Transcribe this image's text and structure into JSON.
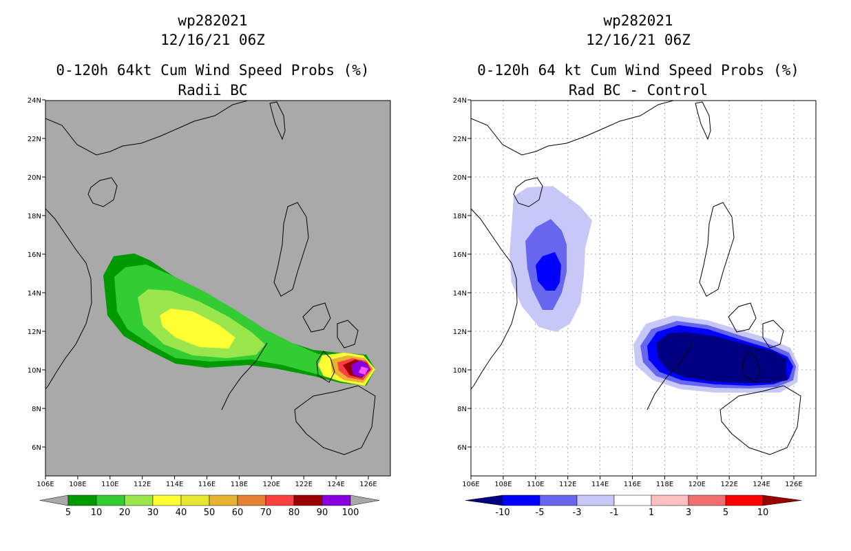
{
  "panels": {
    "left": {
      "storm_id": "wp282021",
      "datetime": "12/16/21 06Z",
      "title": "0-120h 64kt Cum Wind Speed Probs (%)",
      "subtitle": "Radii BC",
      "colorbar_labels": [
        "5",
        "10",
        "20",
        "30",
        "40",
        "50",
        "60",
        "70",
        "80",
        "90",
        "100"
      ],
      "colors": [
        "#009900",
        "#33cc33",
        "#99e64d",
        "#ffff33",
        "#e6e633",
        "#e6b333",
        "#e68033",
        "#ff4040",
        "#990000",
        "#8800dd"
      ]
    },
    "right": {
      "storm_id": "wp282021",
      "datetime": "12/16/21 06Z",
      "title": "0-120h 64 kt Cum Wind Speed Probs (%)",
      "subtitle": "Rad BC - Control",
      "colorbar_labels": [
        "-10",
        "-5",
        "-3",
        "-1",
        "1",
        "3",
        "5",
        "10"
      ],
      "colors": [
        "#000080",
        "#0000ff",
        "#6666ee",
        "#c8c8f8",
        "#ffffff",
        "#ffc0c0",
        "#f07070",
        "#ff0000",
        "#990000"
      ]
    }
  },
  "axes": {
    "lon_labels": [
      "106E",
      "108E",
      "110E",
      "112E",
      "114E",
      "116E",
      "118E",
      "120E",
      "122E",
      "124E",
      "126E"
    ],
    "lat_labels": [
      "6N",
      "8N",
      "10N",
      "12N",
      "14N",
      "16N",
      "18N",
      "20N",
      "22N",
      "24N"
    ]
  }
}
